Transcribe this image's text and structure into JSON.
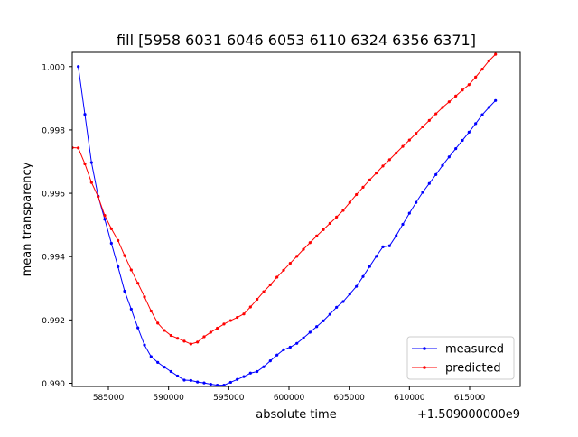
{
  "chart_data": {
    "type": "line",
    "title": "fill [5958 6031 6046 6053 6110 6324 6356 6371]",
    "xlabel": "absolute time",
    "ylabel": "mean transparency",
    "x_offset_label": "+1.509000000e9",
    "xlim": [
      582000,
      619200
    ],
    "ylim": [
      0.9899,
      1.00045
    ],
    "x_ticks": [
      585000,
      590000,
      595000,
      600000,
      605000,
      610000,
      615000
    ],
    "x_tick_labels": [
      "585000",
      "590000",
      "595000",
      "600000",
      "605000",
      "610000",
      "615000"
    ],
    "y_ticks": [
      0.99,
      0.992,
      0.994,
      0.996,
      0.998,
      1.0
    ],
    "y_tick_labels": [
      "0.990",
      "0.992",
      "0.994",
      "0.996",
      "0.998",
      "1.000"
    ],
    "legend_position": "lower-right",
    "grid": false,
    "series": [
      {
        "name": "measured",
        "color": "#0000ff",
        "points": [
          [
            582500,
            1.0
          ],
          [
            583050,
            0.99849
          ],
          [
            583600,
            0.99697
          ],
          [
            584150,
            0.99591
          ],
          [
            584700,
            0.99518
          ],
          [
            585250,
            0.99442
          ],
          [
            585800,
            0.99368
          ],
          [
            586350,
            0.99291
          ],
          [
            586900,
            0.99234
          ],
          [
            587450,
            0.99175
          ],
          [
            588000,
            0.99121
          ],
          [
            588550,
            0.99084
          ],
          [
            589100,
            0.99066
          ],
          [
            589650,
            0.99051
          ],
          [
            590200,
            0.99037
          ],
          [
            590750,
            0.99023
          ],
          [
            591300,
            0.9901
          ],
          [
            591850,
            0.99009
          ],
          [
            592400,
            0.99004
          ],
          [
            592950,
            0.99001
          ],
          [
            593500,
            0.98997
          ],
          [
            594050,
            0.98994
          ],
          [
            594600,
            0.98994
          ],
          [
            595150,
            0.99003
          ],
          [
            595700,
            0.99012
          ],
          [
            596250,
            0.99021
          ],
          [
            596800,
            0.99032
          ],
          [
            597350,
            0.99037
          ],
          [
            597900,
            0.99052
          ],
          [
            598450,
            0.99071
          ],
          [
            599000,
            0.99089
          ],
          [
            599550,
            0.99106
          ],
          [
            600100,
            0.99114
          ],
          [
            600650,
            0.99126
          ],
          [
            601200,
            0.99143
          ],
          [
            601750,
            0.99161
          ],
          [
            602300,
            0.99179
          ],
          [
            602850,
            0.99197
          ],
          [
            603400,
            0.99218
          ],
          [
            603950,
            0.9924
          ],
          [
            604500,
            0.99258
          ],
          [
            605050,
            0.99282
          ],
          [
            605600,
            0.99306
          ],
          [
            606150,
            0.99337
          ],
          [
            606700,
            0.99369
          ],
          [
            607250,
            0.99401
          ],
          [
            607800,
            0.99431
          ],
          [
            608350,
            0.99434
          ],
          [
            608900,
            0.99466
          ],
          [
            609450,
            0.99502
          ],
          [
            610000,
            0.99537
          ],
          [
            610550,
            0.99571
          ],
          [
            611100,
            0.99603
          ],
          [
            611650,
            0.99631
          ],
          [
            612200,
            0.99659
          ],
          [
            612750,
            0.99688
          ],
          [
            613300,
            0.99715
          ],
          [
            613850,
            0.99741
          ],
          [
            614400,
            0.99767
          ],
          [
            614950,
            0.99793
          ],
          [
            615500,
            0.9982
          ],
          [
            616050,
            0.99848
          ],
          [
            616600,
            0.99871
          ],
          [
            617150,
            0.99893
          ]
        ]
      },
      {
        "name": "predicted",
        "color": "#ff0000",
        "points": [
          [
            582000,
            0.99744
          ],
          [
            582500,
            0.99743
          ],
          [
            583050,
            0.99693
          ],
          [
            583600,
            0.99634
          ],
          [
            584150,
            0.99589
          ],
          [
            584700,
            0.9953
          ],
          [
            585250,
            0.99488
          ],
          [
            585800,
            0.99451
          ],
          [
            586350,
            0.99403
          ],
          [
            586900,
            0.99358
          ],
          [
            587450,
            0.99316
          ],
          [
            588000,
            0.99273
          ],
          [
            588550,
            0.99228
          ],
          [
            589100,
            0.9919
          ],
          [
            589650,
            0.99167
          ],
          [
            590200,
            0.99151
          ],
          [
            590750,
            0.99142
          ],
          [
            591300,
            0.99133
          ],
          [
            591850,
            0.99124
          ],
          [
            592400,
            0.9913
          ],
          [
            592950,
            0.99147
          ],
          [
            593500,
            0.99161
          ],
          [
            594050,
            0.99174
          ],
          [
            594600,
            0.99187
          ],
          [
            595150,
            0.99198
          ],
          [
            595700,
            0.99208
          ],
          [
            596250,
            0.99219
          ],
          [
            596800,
            0.99241
          ],
          [
            597350,
            0.99265
          ],
          [
            597900,
            0.99289
          ],
          [
            598450,
            0.99311
          ],
          [
            599000,
            0.99335
          ],
          [
            599550,
            0.99357
          ],
          [
            600100,
            0.99379
          ],
          [
            600650,
            0.99401
          ],
          [
            601200,
            0.99423
          ],
          [
            601750,
            0.99444
          ],
          [
            602300,
            0.99465
          ],
          [
            602850,
            0.99485
          ],
          [
            603400,
            0.99505
          ],
          [
            603950,
            0.99525
          ],
          [
            604500,
            0.99546
          ],
          [
            605050,
            0.99571
          ],
          [
            605600,
            0.99596
          ],
          [
            606150,
            0.99619
          ],
          [
            606700,
            0.99642
          ],
          [
            607250,
            0.99664
          ],
          [
            607800,
            0.99686
          ],
          [
            608350,
            0.99706
          ],
          [
            608900,
            0.99727
          ],
          [
            609450,
            0.99748
          ],
          [
            610000,
            0.99768
          ],
          [
            610550,
            0.99789
          ],
          [
            611100,
            0.9981
          ],
          [
            611650,
            0.9983
          ],
          [
            612200,
            0.99851
          ],
          [
            612750,
            0.99871
          ],
          [
            613300,
            0.99889
          ],
          [
            613850,
            0.99907
          ],
          [
            614400,
            0.99926
          ],
          [
            614950,
            0.99943
          ],
          [
            615500,
            0.99967
          ],
          [
            616050,
            0.99992
          ],
          [
            616600,
            1.00018
          ],
          [
            617150,
            1.00039
          ]
        ]
      }
    ]
  }
}
